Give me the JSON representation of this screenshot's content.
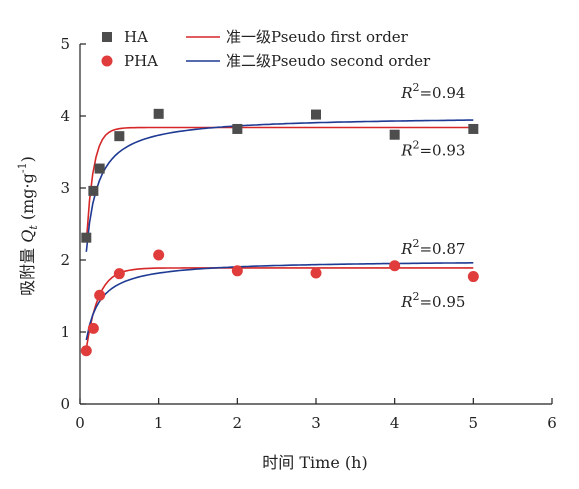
{
  "chart_data": {
    "type": "scatter",
    "xlabel": "时间 Time (h)",
    "ylabel": "吸附量 Qt (mg·g⁻¹)",
    "ylabel_parts": {
      "main": "吸附量 ",
      "italic": "Q",
      "sub": "t",
      "unit": " (mg·g",
      "sup": "-1",
      "close": ")"
    },
    "xlim": [
      0,
      6
    ],
    "ylim": [
      0,
      5
    ],
    "xticks": [
      "0",
      "1",
      "2",
      "3",
      "4",
      "5",
      "6"
    ],
    "yticks": [
      "0",
      "1",
      "2",
      "3",
      "4",
      "5"
    ],
    "grid": false,
    "legend": {
      "placement": "top",
      "entries": [
        "HA",
        "PHA",
        "准一级Pseudo first order",
        "准二级Pseudo second order"
      ]
    },
    "series": [
      {
        "name": "HA",
        "marker": "square",
        "color": "#4d4d4d",
        "x": [
          0.08,
          0.17,
          0.25,
          0.5,
          1,
          2,
          3,
          4,
          5
        ],
        "y": [
          2.31,
          2.96,
          3.27,
          3.72,
          4.03,
          3.82,
          4.02,
          3.74,
          3.82
        ]
      },
      {
        "name": "PHA",
        "marker": "circle",
        "color": "#e03c3c",
        "x": [
          0.08,
          0.17,
          0.25,
          0.5,
          1,
          2,
          3,
          4,
          5
        ],
        "y": [
          0.74,
          1.05,
          1.51,
          1.81,
          2.07,
          1.85,
          1.82,
          1.92,
          1.77
        ]
      }
    ],
    "fits": [
      {
        "name": "准一级Pseudo first order",
        "target": "HA",
        "model": "pfo",
        "color": "#d62728",
        "qe": 3.84,
        "k": 11,
        "x0": 0.08
      },
      {
        "name": "准二级Pseudo second order",
        "target": "HA",
        "model": "pso",
        "color": "#1f3a93",
        "qe": 4.0,
        "k": 3.5,
        "x0": 0.08
      },
      {
        "name": "准一级Pseudo first order",
        "target": "PHA",
        "model": "pfo",
        "color": "#d62728",
        "qe": 1.89,
        "k": 6.5,
        "x0": 0.08
      },
      {
        "name": "准二级Pseudo second order",
        "target": "PHA",
        "model": "pso",
        "color": "#1f3a93",
        "qe": 2.0,
        "k": 5.0,
        "x0": 0.08
      }
    ],
    "annotations": [
      {
        "label": "R",
        "sup": "2",
        "value": "=0.94",
        "x": 4.9,
        "y": 4.25
      },
      {
        "label": "R",
        "sup": "2",
        "value": "=0.93",
        "x": 4.9,
        "y": 3.45
      },
      {
        "label": "R",
        "sup": "2",
        "value": "=0.87",
        "x": 4.9,
        "y": 2.08
      },
      {
        "label": "R",
        "sup": "2",
        "value": "=0.95",
        "x": 4.9,
        "y": 1.35
      }
    ]
  }
}
